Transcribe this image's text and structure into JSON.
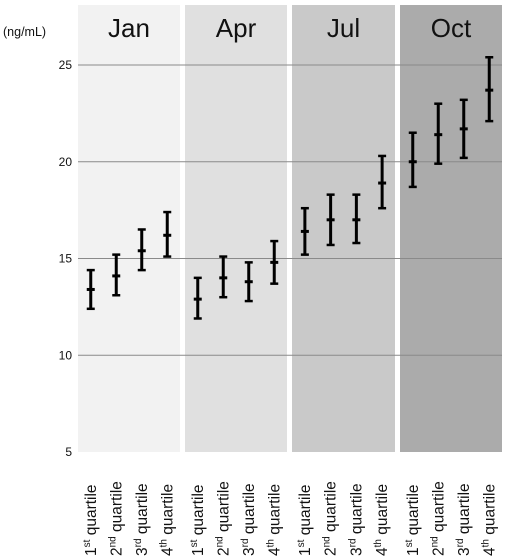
{
  "chart_data": {
    "type": "errorbar",
    "ylabel": "(ng/mL)",
    "ylim": [
      5,
      27
    ],
    "yticks": [
      5,
      10,
      15,
      20,
      25
    ],
    "grid": true,
    "panels": [
      {
        "title": "Jan",
        "color": "#f2f2f2",
        "categories": [
          "1st quartile",
          "2nd quartile",
          "3rd quartile",
          "4th quartile"
        ],
        "mean": [
          13.4,
          14.1,
          15.4,
          16.2
        ],
        "lower": [
          12.4,
          13.1,
          14.4,
          15.1
        ],
        "upper": [
          14.4,
          15.2,
          16.5,
          17.4
        ]
      },
      {
        "title": "Apr",
        "color": "#e0e0e0",
        "categories": [
          "1st quartile",
          "2nd quartile",
          "3rd quartile",
          "4th quartile"
        ],
        "mean": [
          12.9,
          14.0,
          13.8,
          14.8
        ],
        "lower": [
          11.9,
          13.0,
          12.8,
          13.7
        ],
        "upper": [
          14.0,
          15.1,
          14.8,
          15.9
        ]
      },
      {
        "title": "Jul",
        "color": "#c9c9c9",
        "categories": [
          "1st quartile",
          "2nd quartile",
          "3rd quartile",
          "4th quartile"
        ],
        "mean": [
          16.4,
          17.0,
          17.0,
          18.9
        ],
        "lower": [
          15.2,
          15.7,
          15.8,
          17.6
        ],
        "upper": [
          17.6,
          18.3,
          18.3,
          20.3
        ]
      },
      {
        "title": "Oct",
        "color": "#ababab",
        "categories": [
          "1st quartile",
          "2nd quartile",
          "3rd quartile",
          "4th quartile"
        ],
        "mean": [
          20.0,
          21.4,
          21.7,
          23.7
        ],
        "lower": [
          18.7,
          19.9,
          20.2,
          22.1
        ],
        "upper": [
          21.5,
          23.0,
          23.2,
          25.4
        ]
      }
    ]
  }
}
